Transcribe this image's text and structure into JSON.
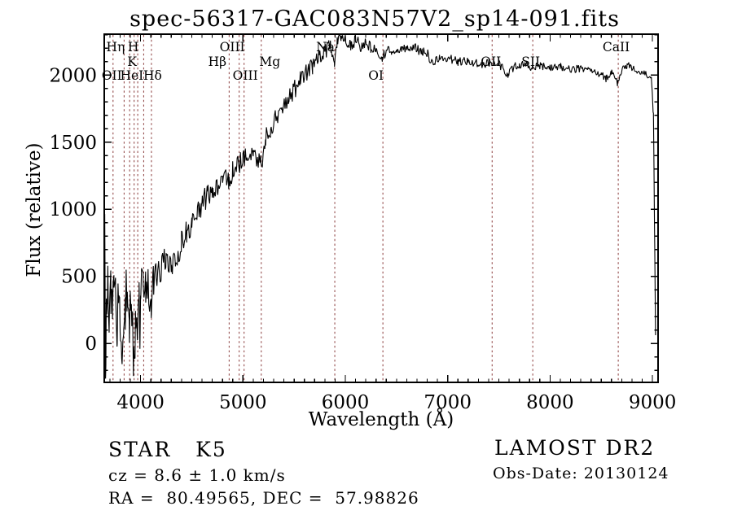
{
  "title": "spec-56317-GAC083N57V2_sp14-091.fits",
  "axes": {
    "xlabel": "Wavelength (Å)",
    "ylabel": "Flux (relative)",
    "x_ticks": [
      4000,
      5000,
      6000,
      7000,
      8000,
      9000
    ],
    "y_ticks": [
      0,
      500,
      1000,
      1500,
      2000
    ],
    "x_range": [
      3645,
      9055
    ],
    "y_range": [
      -290,
      2305
    ]
  },
  "spectral_lines": [
    {
      "label": "OII",
      "wavelength": 3727,
      "row": 3,
      "dx": -1
    },
    {
      "label": "Hη",
      "wavelength": 3835,
      "row": 1,
      "dx": -10
    },
    {
      "label": "",
      "wavelength": 3889,
      "row": 1,
      "dx": 0
    },
    {
      "label": "K",
      "wavelength": 3933,
      "row": 2,
      "dx": -2
    },
    {
      "label": "H",
      "wavelength": 3968,
      "row": 1,
      "dx": -5
    },
    {
      "label": "HeI",
      "wavelength": 4026,
      "row": 3,
      "dx": -14
    },
    {
      "label": "Hδ",
      "wavelength": 4102,
      "row": 3,
      "dx": 2
    },
    {
      "label": "Hβ",
      "wavelength": 4861,
      "row": 2,
      "dx": -14
    },
    {
      "label": "OIII",
      "wavelength": 4959,
      "row": 1,
      "dx": -8
    },
    {
      "label": "OIII",
      "wavelength": 5007,
      "row": 3,
      "dx": 2
    },
    {
      "label": "Mg",
      "wavelength": 5175,
      "row": 2,
      "dx": 11
    },
    {
      "label": "Na",
      "wavelength": 5893,
      "row": 1,
      "dx": -11
    },
    {
      "label": "OI",
      "wavelength": 6363,
      "row": 3,
      "dx": -8
    },
    {
      "label": "OII",
      "wavelength": 7430,
      "row": 2,
      "dx": -1
    },
    {
      "label": "SII",
      "wavelength": 7827,
      "row": 2,
      "dx": -2
    },
    {
      "label": "CaII",
      "wavelength": 8662,
      "row": 1,
      "dx": -2
    }
  ],
  "chart_data": {
    "type": "line",
    "title": "spec-56317-GAC083N57V2_sp14-091.fits",
    "xlabel": "Wavelength (Å)",
    "ylabel": "Flux (relative)",
    "xlim": [
      3645,
      9055
    ],
    "ylim": [
      -290,
      2305
    ],
    "grid": false,
    "series": [
      {
        "name": "spectrum",
        "anchors": [
          [
            3650,
            820
          ],
          [
            3658,
            -230
          ],
          [
            3665,
            300
          ],
          [
            3680,
            420
          ],
          [
            3695,
            150
          ],
          [
            3710,
            430
          ],
          [
            3725,
            250
          ],
          [
            3740,
            420
          ],
          [
            3755,
            380
          ],
          [
            3770,
            120
          ],
          [
            3785,
            400
          ],
          [
            3800,
            250
          ],
          [
            3815,
            -80
          ],
          [
            3835,
            200
          ],
          [
            3850,
            430
          ],
          [
            3870,
            380
          ],
          [
            3889,
            150
          ],
          [
            3910,
            400
          ],
          [
            3933,
            -180
          ],
          [
            3950,
            320
          ],
          [
            3968,
            0
          ],
          [
            3985,
            380
          ],
          [
            4000,
            470
          ],
          [
            4025,
            400
          ],
          [
            4050,
            480
          ],
          [
            4075,
            430
          ],
          [
            4101,
            260
          ],
          [
            4125,
            470
          ],
          [
            4150,
            520
          ],
          [
            4200,
            560
          ],
          [
            4250,
            640
          ],
          [
            4300,
            600
          ],
          [
            4340,
            590
          ],
          [
            4400,
            760
          ],
          [
            4450,
            840
          ],
          [
            4500,
            900
          ],
          [
            4550,
            970
          ],
          [
            4600,
            1040
          ],
          [
            4650,
            1090
          ],
          [
            4700,
            1140
          ],
          [
            4750,
            1190
          ],
          [
            4800,
            1240
          ],
          [
            4861,
            1190
          ],
          [
            4900,
            1290
          ],
          [
            4950,
            1320
          ],
          [
            5000,
            1370
          ],
          [
            5050,
            1390
          ],
          [
            5100,
            1440
          ],
          [
            5175,
            1320
          ],
          [
            5220,
            1540
          ],
          [
            5270,
            1590
          ],
          [
            5320,
            1690
          ],
          [
            5380,
            1770
          ],
          [
            5440,
            1840
          ],
          [
            5500,
            1890
          ],
          [
            5560,
            1960
          ],
          [
            5620,
            2020
          ],
          [
            5680,
            2070
          ],
          [
            5740,
            2130
          ],
          [
            5800,
            2170
          ],
          [
            5860,
            2220
          ],
          [
            5893,
            2090
          ],
          [
            5920,
            2270
          ],
          [
            5960,
            2250
          ],
          [
            6000,
            2270
          ],
          [
            6050,
            2230
          ],
          [
            6100,
            2260
          ],
          [
            6150,
            2220
          ],
          [
            6200,
            2240
          ],
          [
            6250,
            2210
          ],
          [
            6300,
            2170
          ],
          [
            6363,
            2130
          ],
          [
            6400,
            2190
          ],
          [
            6450,
            2150
          ],
          [
            6500,
            2200
          ],
          [
            6550,
            2170
          ],
          [
            6600,
            2210
          ],
          [
            6650,
            2220
          ],
          [
            6700,
            2190
          ],
          [
            6750,
            2170
          ],
          [
            6800,
            2160
          ],
          [
            6870,
            2080
          ],
          [
            6920,
            2140
          ],
          [
            7000,
            2130
          ],
          [
            7100,
            2100
          ],
          [
            7200,
            2110
          ],
          [
            7300,
            2080
          ],
          [
            7430,
            2090
          ],
          [
            7500,
            2080
          ],
          [
            7594,
            2000
          ],
          [
            7650,
            2070
          ],
          [
            7700,
            2080
          ],
          [
            7827,
            2060
          ],
          [
            7900,
            2070
          ],
          [
            8000,
            2050
          ],
          [
            8100,
            2060
          ],
          [
            8200,
            2040
          ],
          [
            8300,
            2050
          ],
          [
            8400,
            2030
          ],
          [
            8500,
            2010
          ],
          [
            8550,
            1970
          ],
          [
            8600,
            2020
          ],
          [
            8662,
            1940
          ],
          [
            8700,
            2050
          ],
          [
            8750,
            2070
          ],
          [
            8800,
            2060
          ],
          [
            8850,
            2040
          ],
          [
            8900,
            2030
          ],
          [
            8950,
            1990
          ],
          [
            8990,
            1970
          ],
          [
            9010,
            1700
          ],
          [
            9020,
            900
          ],
          [
            9030,
            60
          ]
        ],
        "noise_profile": [
          [
            3650,
            170
          ],
          [
            3900,
            170
          ],
          [
            4100,
            120
          ],
          [
            4400,
            100
          ],
          [
            4800,
            90
          ],
          [
            5200,
            80
          ],
          [
            5600,
            70
          ],
          [
            5900,
            55
          ],
          [
            6200,
            45
          ],
          [
            6600,
            40
          ],
          [
            7000,
            35
          ],
          [
            7600,
            32
          ],
          [
            8300,
            30
          ],
          [
            9050,
            28
          ]
        ]
      }
    ]
  },
  "annotations": {
    "class_label": "STAR   K5",
    "cz": "cz = 8.6 ± 1.0 km/s",
    "radec": "RA =  80.49565, DEC =  57.98826",
    "survey": "LAMOST DR2",
    "obs_date": "Obs-Date: 20130124"
  },
  "colors": {
    "spectrum": "#000000",
    "line_marker": "#8a3b3b",
    "text": "#000000",
    "background": "#ffffff"
  }
}
